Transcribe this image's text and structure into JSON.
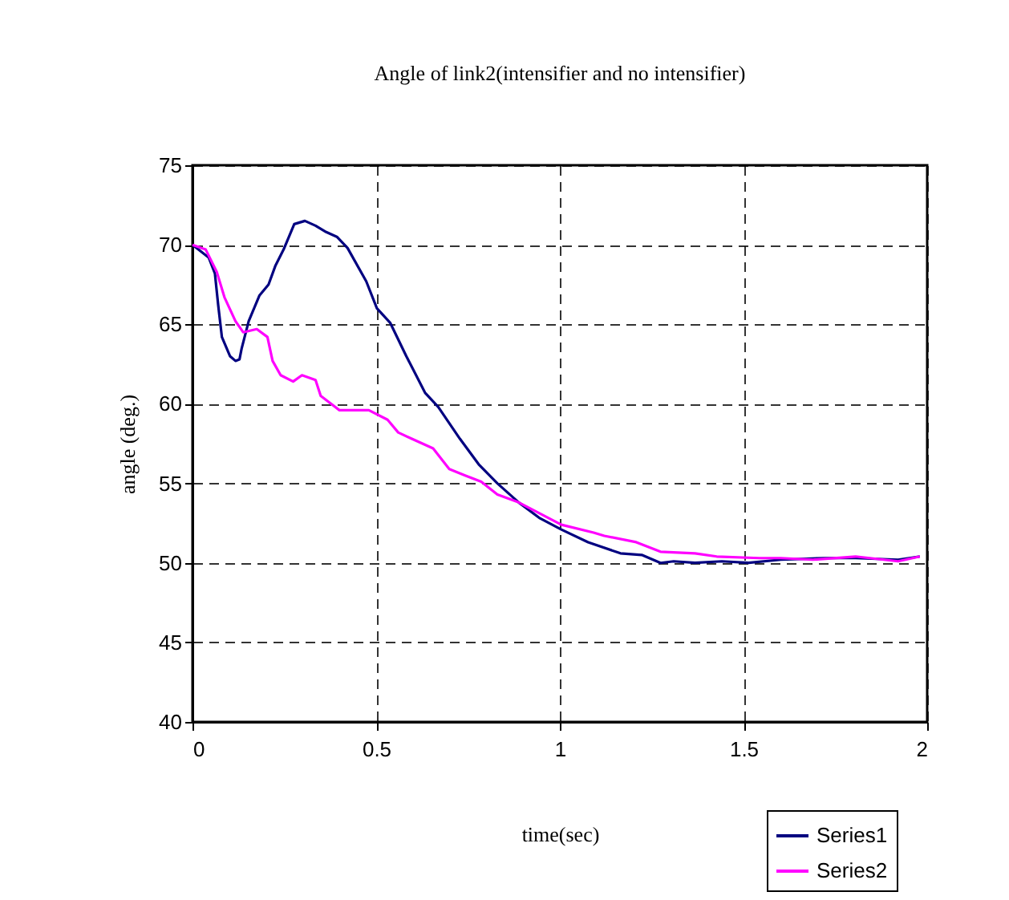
{
  "chart_data": {
    "type": "line",
    "title": "Angle of link2(intensifier and no intensifier)",
    "xlabel": "time(sec)",
    "ylabel": "angle (deg.)",
    "xlim": [
      0,
      2
    ],
    "xticks": [
      0,
      0.5,
      1,
      1.5,
      2
    ],
    "ylim": [
      40,
      75
    ],
    "yticks": [
      40,
      45,
      50,
      55,
      60,
      65,
      70,
      75
    ],
    "grid": true,
    "legend": "bottom right",
    "line_style": "solid",
    "marker": "none",
    "series": [
      {
        "name": "Series1",
        "color": "#000080",
        "x": [
          0,
          0.044,
          0.061,
          0.07,
          0.08,
          0.102,
          0.117,
          0.128,
          0.134,
          0.153,
          0.182,
          0.207,
          0.226,
          0.248,
          0.277,
          0.306,
          0.335,
          0.364,
          0.393,
          0.422,
          0.473,
          0.502,
          0.538,
          0.582,
          0.633,
          0.669,
          0.728,
          0.779,
          0.83,
          0.888,
          0.946,
          1.004,
          1.077,
          1.165,
          1.223,
          1.274,
          1.31,
          1.368,
          1.441,
          1.514,
          1.601,
          1.718,
          1.805,
          1.921,
          1.98
        ],
        "values": [
          70,
          69.2,
          68.2,
          66.2,
          64.2,
          63,
          62.7,
          62.8,
          63.5,
          65.2,
          66.8,
          67.5,
          68.7,
          69.7,
          71.3,
          71.5,
          71.2,
          70.8,
          70.5,
          69.8,
          67.7,
          66,
          65.1,
          63,
          60.7,
          59.8,
          57.8,
          56.2,
          55,
          53.8,
          52.8,
          52.1,
          51.3,
          50.6,
          50.5,
          50,
          50.1,
          50,
          50.1,
          50,
          50.2,
          50.3,
          50.3,
          50.2,
          50.4
        ]
      },
      {
        "name": "Series2",
        "color": "#ff00ff",
        "x": [
          0,
          0.036,
          0.066,
          0.087,
          0.117,
          0.138,
          0.175,
          0.204,
          0.218,
          0.24,
          0.274,
          0.298,
          0.335,
          0.349,
          0.4,
          0.48,
          0.531,
          0.56,
          0.597,
          0.655,
          0.699,
          0.742,
          0.786,
          0.83,
          0.888,
          1.004,
          1.092,
          1.121,
          1.208,
          1.274,
          1.368,
          1.427,
          1.543,
          1.601,
          1.689,
          1.805,
          1.921,
          1.98
        ],
        "values": [
          70,
          69.7,
          68.3,
          66.7,
          65.2,
          64.5,
          64.7,
          64.2,
          62.7,
          61.8,
          61.4,
          61.8,
          61.5,
          60.5,
          59.6,
          59.6,
          59,
          58.2,
          57.8,
          57.2,
          55.9,
          55.5,
          55.1,
          54.3,
          53.8,
          52.4,
          51.9,
          51.7,
          51.3,
          50.7,
          50.6,
          50.4,
          50.3,
          50.3,
          50.2,
          50.4,
          50.1,
          50.4
        ]
      }
    ]
  }
}
